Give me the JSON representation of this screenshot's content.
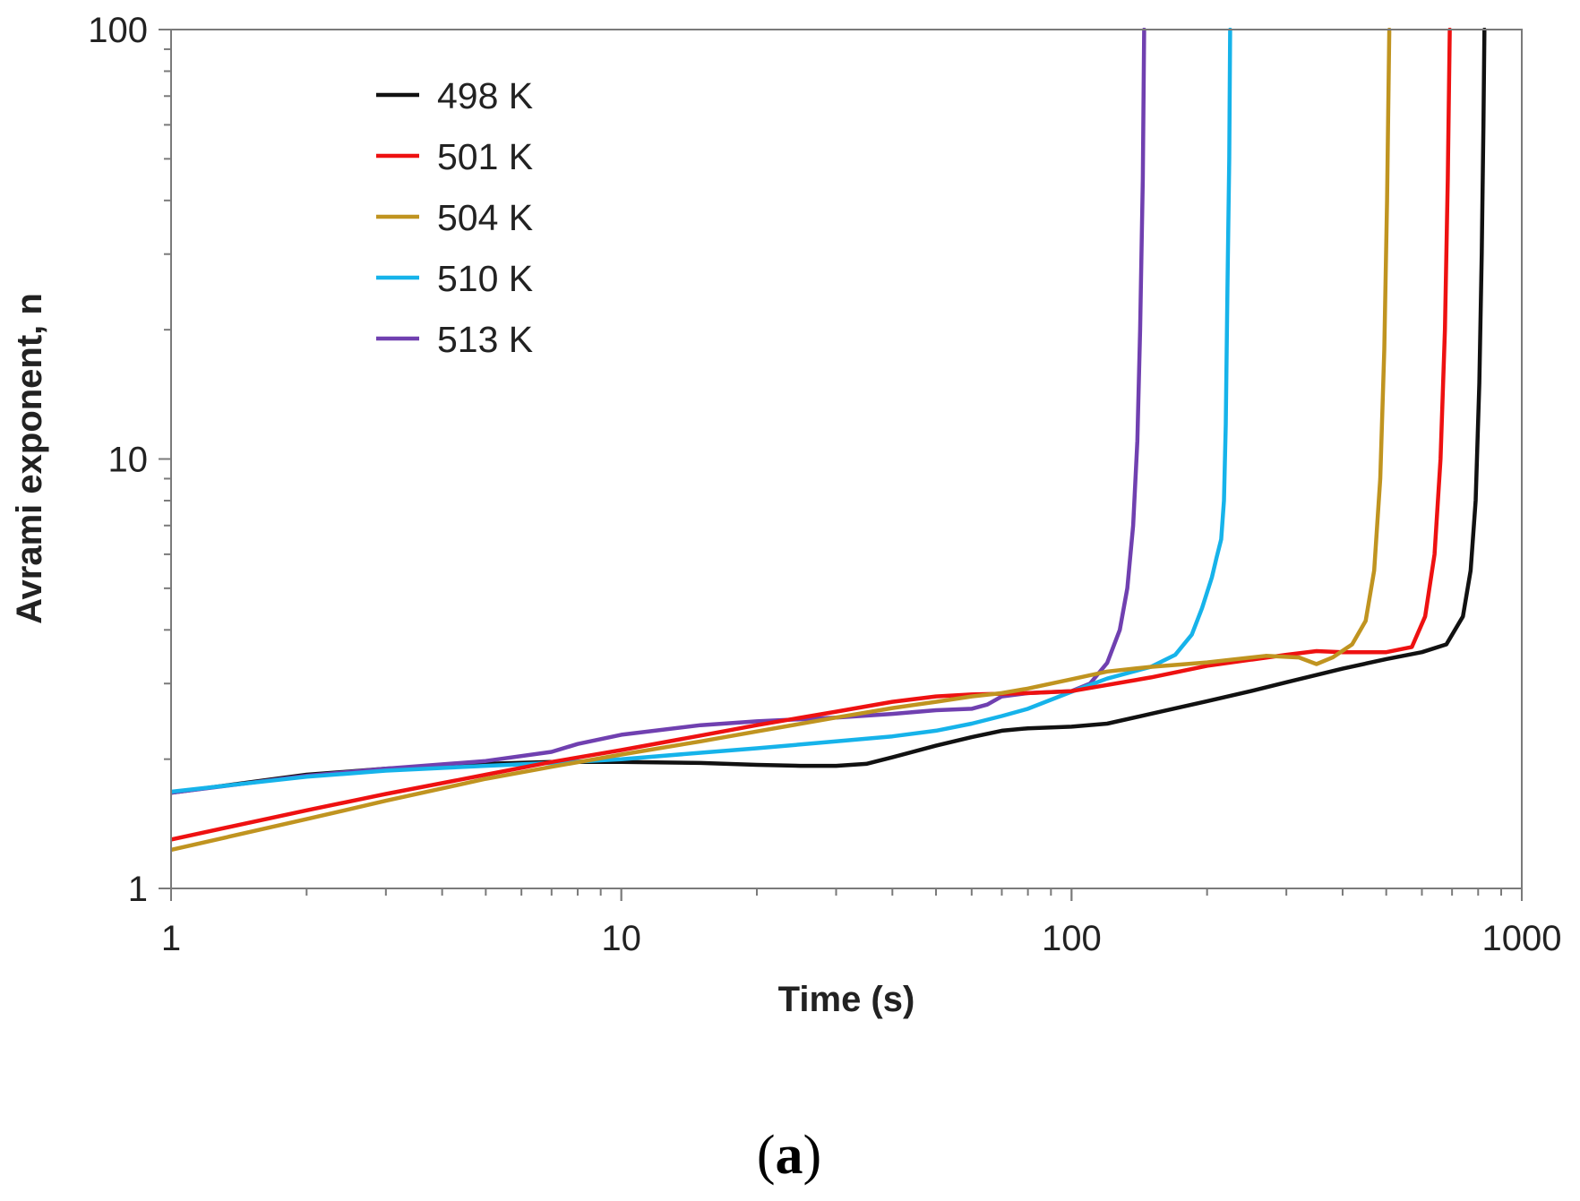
{
  "chart_data": {
    "type": "line",
    "title": "",
    "xlabel": "Time (s)",
    "ylabel": "Avrami exponent, n",
    "xscale": "log",
    "yscale": "log",
    "xlim": [
      1,
      1000
    ],
    "ylim": [
      1,
      100
    ],
    "xticks": [
      1,
      10,
      100,
      1000
    ],
    "xtick_labels": [
      "1",
      "10",
      "100",
      "1000"
    ],
    "yticks": [
      1,
      10,
      100
    ],
    "ytick_labels": [
      "1",
      "10",
      "100"
    ],
    "grid": false,
    "legend_position": "top-left",
    "series": [
      {
        "name": "498 K",
        "color": "#111111",
        "points": [
          [
            1,
            1.67
          ],
          [
            2,
            1.84
          ],
          [
            3,
            1.9
          ],
          [
            5,
            1.95
          ],
          [
            7,
            1.97
          ],
          [
            10,
            1.97
          ],
          [
            15,
            1.96
          ],
          [
            20,
            1.94
          ],
          [
            25,
            1.93
          ],
          [
            30,
            1.93
          ],
          [
            35,
            1.95
          ],
          [
            40,
            2.02
          ],
          [
            50,
            2.15
          ],
          [
            60,
            2.25
          ],
          [
            70,
            2.33
          ],
          [
            80,
            2.36
          ],
          [
            100,
            2.38
          ],
          [
            120,
            2.42
          ],
          [
            150,
            2.55
          ],
          [
            200,
            2.73
          ],
          [
            250,
            2.88
          ],
          [
            300,
            3.02
          ],
          [
            400,
            3.25
          ],
          [
            500,
            3.42
          ],
          [
            600,
            3.55
          ],
          [
            680,
            3.7
          ],
          [
            740,
            4.3
          ],
          [
            770,
            5.5
          ],
          [
            790,
            8
          ],
          [
            805,
            15
          ],
          [
            815,
            30
          ],
          [
            822,
            60
          ],
          [
            826,
            100
          ]
        ]
      },
      {
        "name": "501 K",
        "color": "#ee1111",
        "points": [
          [
            1,
            1.3
          ],
          [
            2,
            1.52
          ],
          [
            3,
            1.66
          ],
          [
            5,
            1.84
          ],
          [
            7,
            1.97
          ],
          [
            10,
            2.1
          ],
          [
            15,
            2.27
          ],
          [
            20,
            2.4
          ],
          [
            30,
            2.58
          ],
          [
            40,
            2.72
          ],
          [
            50,
            2.8
          ],
          [
            60,
            2.83
          ],
          [
            80,
            2.85
          ],
          [
            100,
            2.88
          ],
          [
            150,
            3.1
          ],
          [
            200,
            3.3
          ],
          [
            300,
            3.5
          ],
          [
            350,
            3.57
          ],
          [
            400,
            3.55
          ],
          [
            500,
            3.55
          ],
          [
            570,
            3.65
          ],
          [
            610,
            4.3
          ],
          [
            640,
            6
          ],
          [
            660,
            10
          ],
          [
            675,
            20
          ],
          [
            685,
            45
          ],
          [
            692,
            100
          ]
        ]
      },
      {
        "name": "504 K",
        "color": "#c09420",
        "points": [
          [
            1,
            1.23
          ],
          [
            2,
            1.45
          ],
          [
            3,
            1.6
          ],
          [
            5,
            1.8
          ],
          [
            7,
            1.92
          ],
          [
            10,
            2.05
          ],
          [
            15,
            2.2
          ],
          [
            20,
            2.32
          ],
          [
            30,
            2.5
          ],
          [
            40,
            2.63
          ],
          [
            50,
            2.72
          ],
          [
            60,
            2.8
          ],
          [
            70,
            2.85
          ],
          [
            80,
            2.92
          ],
          [
            100,
            3.07
          ],
          [
            120,
            3.2
          ],
          [
            150,
            3.28
          ],
          [
            200,
            3.36
          ],
          [
            270,
            3.48
          ],
          [
            320,
            3.45
          ],
          [
            350,
            3.33
          ],
          [
            380,
            3.45
          ],
          [
            420,
            3.7
          ],
          [
            450,
            4.2
          ],
          [
            470,
            5.5
          ],
          [
            485,
            9
          ],
          [
            495,
            18
          ],
          [
            502,
            40
          ],
          [
            508,
            100
          ]
        ]
      },
      {
        "name": "510 K",
        "color": "#16b3ea",
        "points": [
          [
            1,
            1.68
          ],
          [
            2,
            1.82
          ],
          [
            3,
            1.88
          ],
          [
            5,
            1.93
          ],
          [
            7,
            1.96
          ],
          [
            10,
            2.0
          ],
          [
            15,
            2.07
          ],
          [
            20,
            2.12
          ],
          [
            30,
            2.2
          ],
          [
            40,
            2.26
          ],
          [
            50,
            2.33
          ],
          [
            60,
            2.42
          ],
          [
            70,
            2.52
          ],
          [
            80,
            2.62
          ],
          [
            100,
            2.87
          ],
          [
            120,
            3.08
          ],
          [
            150,
            3.28
          ],
          [
            170,
            3.5
          ],
          [
            185,
            3.9
          ],
          [
            195,
            4.5
          ],
          [
            205,
            5.3
          ],
          [
            210,
            5.9
          ],
          [
            215,
            6.5
          ],
          [
            218,
            8
          ],
          [
            220,
            12
          ],
          [
            222,
            25
          ],
          [
            224,
            50
          ],
          [
            225,
            100
          ]
        ]
      },
      {
        "name": "513 K",
        "color": "#7040b0",
        "points": [
          [
            1,
            1.67
          ],
          [
            2,
            1.83
          ],
          [
            3,
            1.9
          ],
          [
            5,
            1.98
          ],
          [
            7,
            2.08
          ],
          [
            8,
            2.17
          ],
          [
            10,
            2.28
          ],
          [
            15,
            2.4
          ],
          [
            20,
            2.45
          ],
          [
            30,
            2.5
          ],
          [
            40,
            2.55
          ],
          [
            50,
            2.6
          ],
          [
            60,
            2.62
          ],
          [
            65,
            2.68
          ],
          [
            70,
            2.8
          ],
          [
            80,
            2.85
          ],
          [
            100,
            2.88
          ],
          [
            110,
            3.0
          ],
          [
            120,
            3.35
          ],
          [
            128,
            4.0
          ],
          [
            133,
            5.0
          ],
          [
            137,
            7
          ],
          [
            140,
            11
          ],
          [
            142,
            20
          ],
          [
            144,
            45
          ],
          [
            145,
            100
          ]
        ]
      }
    ],
    "panel_label": "a"
  }
}
